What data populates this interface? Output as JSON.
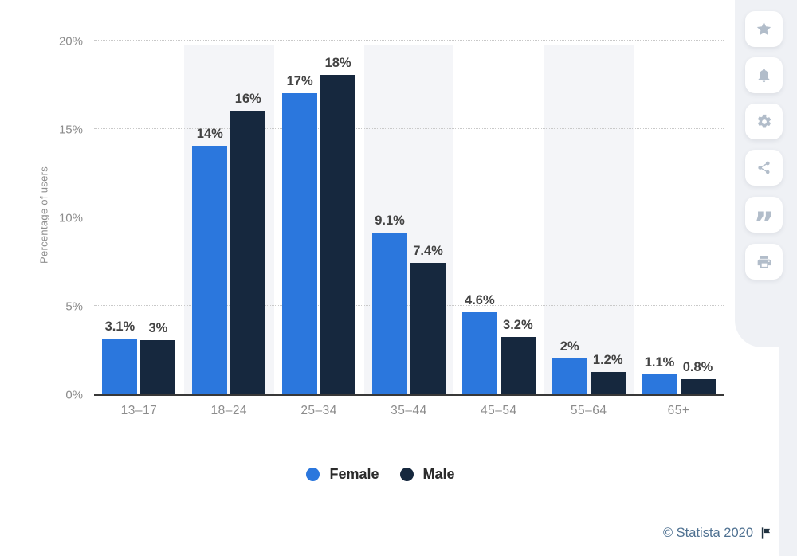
{
  "chart_data": {
    "type": "bar",
    "title": "",
    "ylabel": "Percentage of users",
    "categories": [
      "13–17",
      "18–24",
      "25–34",
      "35–44",
      "45–54",
      "55–64",
      "65+"
    ],
    "series": [
      {
        "name": "Female",
        "color": "#2b77dd",
        "values": [
          3.1,
          14,
          17,
          9.1,
          4.6,
          2,
          1.1
        ],
        "labels": [
          "3.1%",
          "14%",
          "17%",
          "9.1%",
          "4.6%",
          "2%",
          "1.1%"
        ]
      },
      {
        "name": "Male",
        "color": "#16283e",
        "values": [
          3,
          16,
          18,
          7.4,
          3.2,
          1.2,
          0.8
        ],
        "labels": [
          "3%",
          "16%",
          "18%",
          "7.4%",
          "3.2%",
          "1.2%",
          "0.8%"
        ]
      }
    ],
    "yticks": [
      {
        "value": 0,
        "label": "0%"
      },
      {
        "value": 5,
        "label": "5%"
      },
      {
        "value": 10,
        "label": "10%"
      },
      {
        "value": 15,
        "label": "15%"
      },
      {
        "value": 20,
        "label": "20%"
      }
    ],
    "ylim": [
      0,
      20
    ],
    "grid": "horizontal-dotted",
    "legend_position": "bottom",
    "band_columns": [
      1,
      3,
      5
    ],
    "band_color": "#f4f5f8"
  },
  "legend": {
    "items": [
      {
        "label": "Female",
        "color": "#2b77dd"
      },
      {
        "label": "Male",
        "color": "#16283e"
      }
    ]
  },
  "sidebar": {
    "buttons": [
      {
        "name": "favorite",
        "icon": "star-icon"
      },
      {
        "name": "notifications",
        "icon": "bell-icon"
      },
      {
        "name": "settings",
        "icon": "gear-icon"
      },
      {
        "name": "share",
        "icon": "share-icon"
      },
      {
        "name": "cite",
        "icon": "quote-icon"
      },
      {
        "name": "print",
        "icon": "printer-icon"
      }
    ]
  },
  "footer": {
    "copyright": "© Statista 2020",
    "icon": "flag-icon"
  },
  "colors": {
    "female": "#2b77dd",
    "male": "#16283e",
    "axis": "#383838",
    "gridline": "#c9c9c9",
    "tick_text": "#8c8c8c",
    "value_text": "#434343",
    "rail_bg": "#eff1f5",
    "rail_icon": "#b2bdca",
    "footer_link": "#4f7191"
  }
}
